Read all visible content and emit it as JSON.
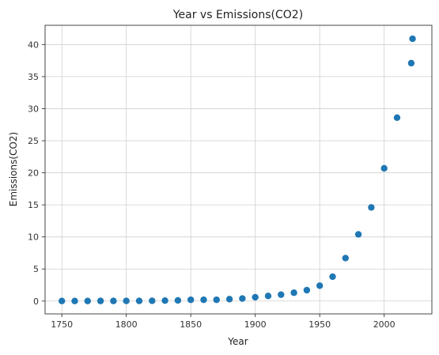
{
  "chart_data": {
    "type": "scatter",
    "title": "Year vs Emissions(CO2)",
    "xlabel": "Year",
    "ylabel": "Emissions(CO2)",
    "xlim": [
      1737,
      2037
    ],
    "ylim": [
      -2,
      43
    ],
    "xticks": [
      1750,
      1800,
      1850,
      1900,
      1950,
      2000
    ],
    "yticks": [
      0,
      5,
      10,
      15,
      20,
      25,
      30,
      35,
      40
    ],
    "grid": true,
    "color": "#1f77b4",
    "series": [
      {
        "x": [
          1750,
          1760,
          1770,
          1780,
          1790,
          1800,
          1810,
          1820,
          1830,
          1840,
          1850,
          1860,
          1870,
          1880,
          1890,
          1900,
          1910,
          1920,
          1930,
          1940,
          1950,
          1960,
          1970,
          1980,
          1990,
          2000,
          2010,
          2021,
          2022
        ],
        "y": [
          0.01,
          0.01,
          0.01,
          0.02,
          0.02,
          0.03,
          0.03,
          0.04,
          0.07,
          0.1,
          0.2,
          0.2,
          0.2,
          0.3,
          0.4,
          0.6,
          0.8,
          1.0,
          1.3,
          1.7,
          2.4,
          3.8,
          6.7,
          10.4,
          14.6,
          20.7,
          28.6,
          37.1,
          40.9
        ]
      }
    ]
  }
}
